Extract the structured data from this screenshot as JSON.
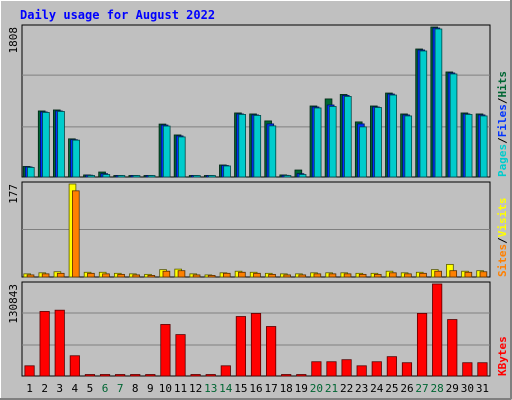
{
  "title": "Daily usage for August 2022",
  "colors": {
    "background": "#c0c0c0",
    "title": "#0000ff",
    "hits": "#006633",
    "files": "#0033ff",
    "pages": "#00cccc",
    "visits": "#ffff00",
    "sites": "#ff8000",
    "kbytes": "#ff0000",
    "grid": "#808080",
    "weekend_label": "#006633",
    "weekday_label": "#000000"
  },
  "chart_data": [
    {
      "type": "bar",
      "panel": "hits-files-pages",
      "ymax_label": "1808",
      "ylim": [
        0,
        1808
      ],
      "legend": [
        {
          "name": "Pages",
          "color": "#00cccc"
        },
        {
          "name": "/",
          "color": "#000000"
        },
        {
          "name": "Files",
          "color": "#0033ff"
        },
        {
          "name": "/",
          "color": "#000000"
        },
        {
          "name": "Hits",
          "color": "#006633"
        }
      ],
      "x": [
        "1",
        "2",
        "3",
        "4",
        "5",
        "6",
        "7",
        "8",
        "9",
        "10",
        "11",
        "12",
        "13",
        "14",
        "15",
        "16",
        "17",
        "18",
        "19",
        "20",
        "21",
        "22",
        "23",
        "24",
        "25",
        "26",
        "27",
        "28",
        "29",
        "30",
        "31"
      ],
      "series": [
        {
          "name": "Hits",
          "values": [
            127,
            796,
            808,
            460,
            25,
            60,
            10,
            10,
            10,
            638,
            507,
            10,
            10,
            145,
            772,
            760,
            676,
            25,
            84,
            856,
            941,
            995,
            664,
            856,
            1012,
            760,
            1543,
            1808,
            1266,
            772,
            760
          ]
        },
        {
          "name": "Files",
          "values": [
            121,
            784,
            796,
            450,
            22,
            40,
            8,
            8,
            8,
            626,
            495,
            8,
            8,
            139,
            760,
            748,
            640,
            20,
            40,
            844,
            868,
            983,
            640,
            844,
            1000,
            748,
            1531,
            1796,
            1254,
            760,
            748
          ]
        },
        {
          "name": "Pages",
          "values": [
            115,
            778,
            790,
            444,
            18,
            30,
            6,
            6,
            6,
            614,
            483,
            6,
            6,
            133,
            754,
            742,
            616,
            15,
            30,
            832,
            850,
            971,
            604,
            838,
            988,
            736,
            1519,
            1784,
            1242,
            754,
            736
          ]
        }
      ]
    },
    {
      "type": "bar",
      "panel": "visits-sites",
      "ymax_label": "177",
      "ylim": [
        0,
        177
      ],
      "legend": [
        {
          "name": "Sites",
          "color": "#ff8000"
        },
        {
          "name": "/",
          "color": "#000000"
        },
        {
          "name": "Visits",
          "color": "#ffff00"
        }
      ],
      "x": [
        "1",
        "2",
        "3",
        "4",
        "5",
        "6",
        "7",
        "8",
        "9",
        "10",
        "11",
        "12",
        "13",
        "14",
        "15",
        "16",
        "17",
        "18",
        "19",
        "20",
        "21",
        "22",
        "23",
        "24",
        "25",
        "26",
        "27",
        "28",
        "29",
        "30",
        "31"
      ],
      "series": [
        {
          "name": "Visits",
          "values": [
            6,
            8,
            10,
            177,
            9,
            9,
            7,
            6,
            5,
            14,
            15,
            6,
            4,
            8,
            11,
            9,
            7,
            6,
            6,
            8,
            8,
            8,
            7,
            7,
            11,
            8,
            9,
            14,
            24,
            11,
            12
          ]
        },
        {
          "name": "Sites",
          "values": [
            4,
            6,
            7,
            164,
            7,
            6,
            5,
            4,
            3,
            11,
            12,
            4,
            3,
            7,
            9,
            7,
            5,
            4,
            4,
            6,
            6,
            6,
            5,
            5,
            8,
            6,
            7,
            11,
            12,
            9,
            10
          ]
        }
      ]
    },
    {
      "type": "bar",
      "panel": "kbytes",
      "ymax_label": "130843",
      "ylim": [
        0,
        130843
      ],
      "legend": [
        {
          "name": "KBytes",
          "color": "#ff0000"
        }
      ],
      "x": [
        "1",
        "2",
        "3",
        "4",
        "5",
        "6",
        "7",
        "8",
        "9",
        "10",
        "11",
        "12",
        "13",
        "14",
        "15",
        "16",
        "17",
        "18",
        "19",
        "20",
        "21",
        "22",
        "23",
        "24",
        "25",
        "26",
        "27",
        "28",
        "29",
        "30",
        "31"
      ],
      "series": [
        {
          "name": "KBytes",
          "values": [
            14500,
            91800,
            93600,
            28800,
            1500,
            1500,
            1500,
            1500,
            1500,
            73300,
            58900,
            1500,
            1500,
            14500,
            84600,
            89000,
            70400,
            1500,
            1500,
            20300,
            20300,
            23200,
            14500,
            20300,
            27500,
            18900,
            89000,
            130843,
            80300,
            18900,
            18900
          ]
        }
      ]
    }
  ],
  "day_labels": [
    "1",
    "2",
    "3",
    "4",
    "5",
    "6",
    "7",
    "8",
    "9",
    "10",
    "11",
    "12",
    "13",
    "14",
    "15",
    "16",
    "17",
    "18",
    "19",
    "20",
    "21",
    "22",
    "23",
    "24",
    "25",
    "26",
    "27",
    "28",
    "29",
    "30",
    "31"
  ],
  "weekend_days": [
    "6",
    "7",
    "13",
    "14",
    "20",
    "21",
    "27",
    "28"
  ]
}
